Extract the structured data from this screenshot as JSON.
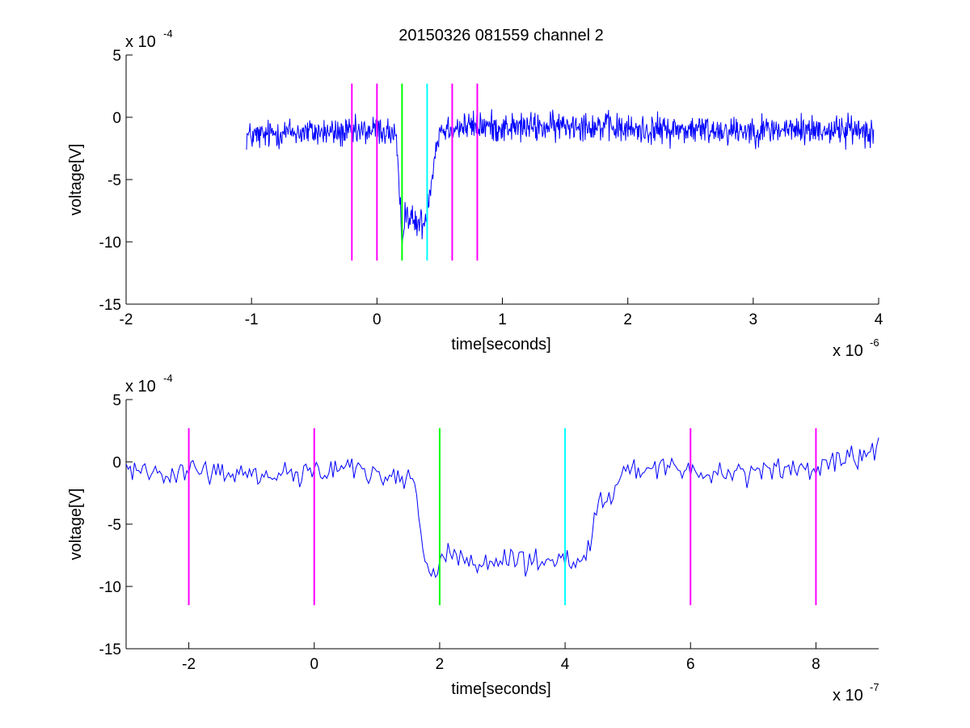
{
  "chart_data": [
    {
      "type": "line",
      "title": "20150326 081559 channel 2",
      "xlabel": "time[seconds]",
      "ylabel": "voltage[V]",
      "x_exponent_label": {
        "base": "x 10",
        "exp": "-6"
      },
      "y_exponent_label": {
        "base": "x 10",
        "exp": "-4"
      },
      "xlim": [
        -2,
        4
      ],
      "ylim": [
        -15,
        5
      ],
      "xticks": [
        -2,
        -1,
        0,
        1,
        2,
        3,
        4
      ],
      "yticks": [
        -15,
        -10,
        -5,
        0,
        5
      ],
      "xtick_labels": [
        "-2",
        "-1",
        "0",
        "1",
        "2",
        "3",
        "4"
      ],
      "ytick_labels": [
        "-15",
        "-10",
        "-5",
        "0",
        "5"
      ],
      "grid": false,
      "series": [
        {
          "color": "#0000ff",
          "x": [
            -1.04,
            -0.9,
            -0.8,
            -0.6,
            -0.4,
            -0.2,
            0.0,
            0.1,
            0.15,
            0.17,
            0.19,
            0.2,
            0.22,
            0.3,
            0.38,
            0.42,
            0.46,
            0.5,
            0.6,
            0.8,
            1.0,
            1.2,
            1.4,
            1.6,
            2.0,
            2.5,
            3.0,
            3.5,
            3.96
          ],
          "y": [
            -1.5,
            -1.5,
            -1.2,
            -1.2,
            -1.2,
            -1.3,
            -1.0,
            -1.2,
            -1.5,
            -5.0,
            -8.0,
            -10.0,
            -7.5,
            -8.5,
            -8.5,
            -6.0,
            -3.0,
            -1.0,
            -0.8,
            -0.7,
            -0.8,
            -0.8,
            -0.8,
            -0.5,
            -1.0,
            -1.0,
            -1.0,
            -1.0,
            -1.0
          ],
          "noise": 1.2
        }
      ],
      "vlines": [
        {
          "x": -0.2,
          "color": "#ff00ff",
          "y": [
            -11.5,
            2.7
          ]
        },
        {
          "x": 0.0,
          "color": "#ff00ff",
          "y": [
            -11.5,
            2.7
          ]
        },
        {
          "x": 0.2,
          "color": "#00ff00",
          "y": [
            -11.5,
            2.7
          ]
        },
        {
          "x": 0.4,
          "color": "#00ffff",
          "y": [
            -11.5,
            2.7
          ]
        },
        {
          "x": 0.6,
          "color": "#ff00ff",
          "y": [
            -11.5,
            2.7
          ]
        },
        {
          "x": 0.8,
          "color": "#ff00ff",
          "y": [
            -11.5,
            2.7
          ]
        }
      ]
    },
    {
      "type": "line",
      "title": "",
      "xlabel": "time[seconds]",
      "ylabel": "voltage[V]",
      "x_exponent_label": {
        "base": "x 10",
        "exp": "-7"
      },
      "y_exponent_label": {
        "base": "x 10",
        "exp": "-4"
      },
      "xlim": [
        -3,
        9
      ],
      "ylim": [
        -15,
        5
      ],
      "xticks": [
        -2,
        0,
        2,
        4,
        6,
        8
      ],
      "yticks": [
        -15,
        -10,
        -5,
        0,
        5
      ],
      "xtick_labels": [
        "-2",
        "0",
        "2",
        "4",
        "6",
        "8"
      ],
      "ytick_labels": [
        "-15",
        "-10",
        "-5",
        "0",
        "5"
      ],
      "grid": false,
      "series": [
        {
          "color": "#0000ff",
          "x": [
            -3.0,
            -2.0,
            -1.0,
            0.0,
            0.5,
            1.0,
            1.4,
            1.6,
            1.7,
            1.8,
            1.9,
            2.0,
            2.1,
            2.5,
            3.0,
            3.5,
            4.0,
            4.2,
            4.4,
            4.5,
            4.7,
            5.0,
            6.0,
            7.0,
            8.0,
            9.0
          ],
          "y": [
            -0.5,
            -0.8,
            -1.0,
            -0.8,
            -0.5,
            -1.0,
            -1.0,
            -2.0,
            -6.0,
            -8.0,
            -9.0,
            -8.0,
            -7.0,
            -8.5,
            -8.0,
            -8.0,
            -8.0,
            -8.5,
            -7.0,
            -4.0,
            -3.0,
            -0.5,
            -0.8,
            -0.7,
            -0.5,
            0.8
          ],
          "noise": 1.0
        }
      ],
      "vlines": [
        {
          "x": -2.0,
          "color": "#ff00ff",
          "y": [
            -11.5,
            2.7
          ]
        },
        {
          "x": 0.0,
          "color": "#ff00ff",
          "y": [
            -11.5,
            2.7
          ]
        },
        {
          "x": 2.0,
          "color": "#00ff00",
          "y": [
            -11.5,
            2.7
          ]
        },
        {
          "x": 4.0,
          "color": "#00ffff",
          "y": [
            -11.5,
            2.7
          ]
        },
        {
          "x": 6.0,
          "color": "#ff00ff",
          "y": [
            -11.5,
            2.7
          ]
        },
        {
          "x": 8.0,
          "color": "#ff00ff",
          "y": [
            -11.5,
            2.7
          ]
        }
      ]
    }
  ]
}
